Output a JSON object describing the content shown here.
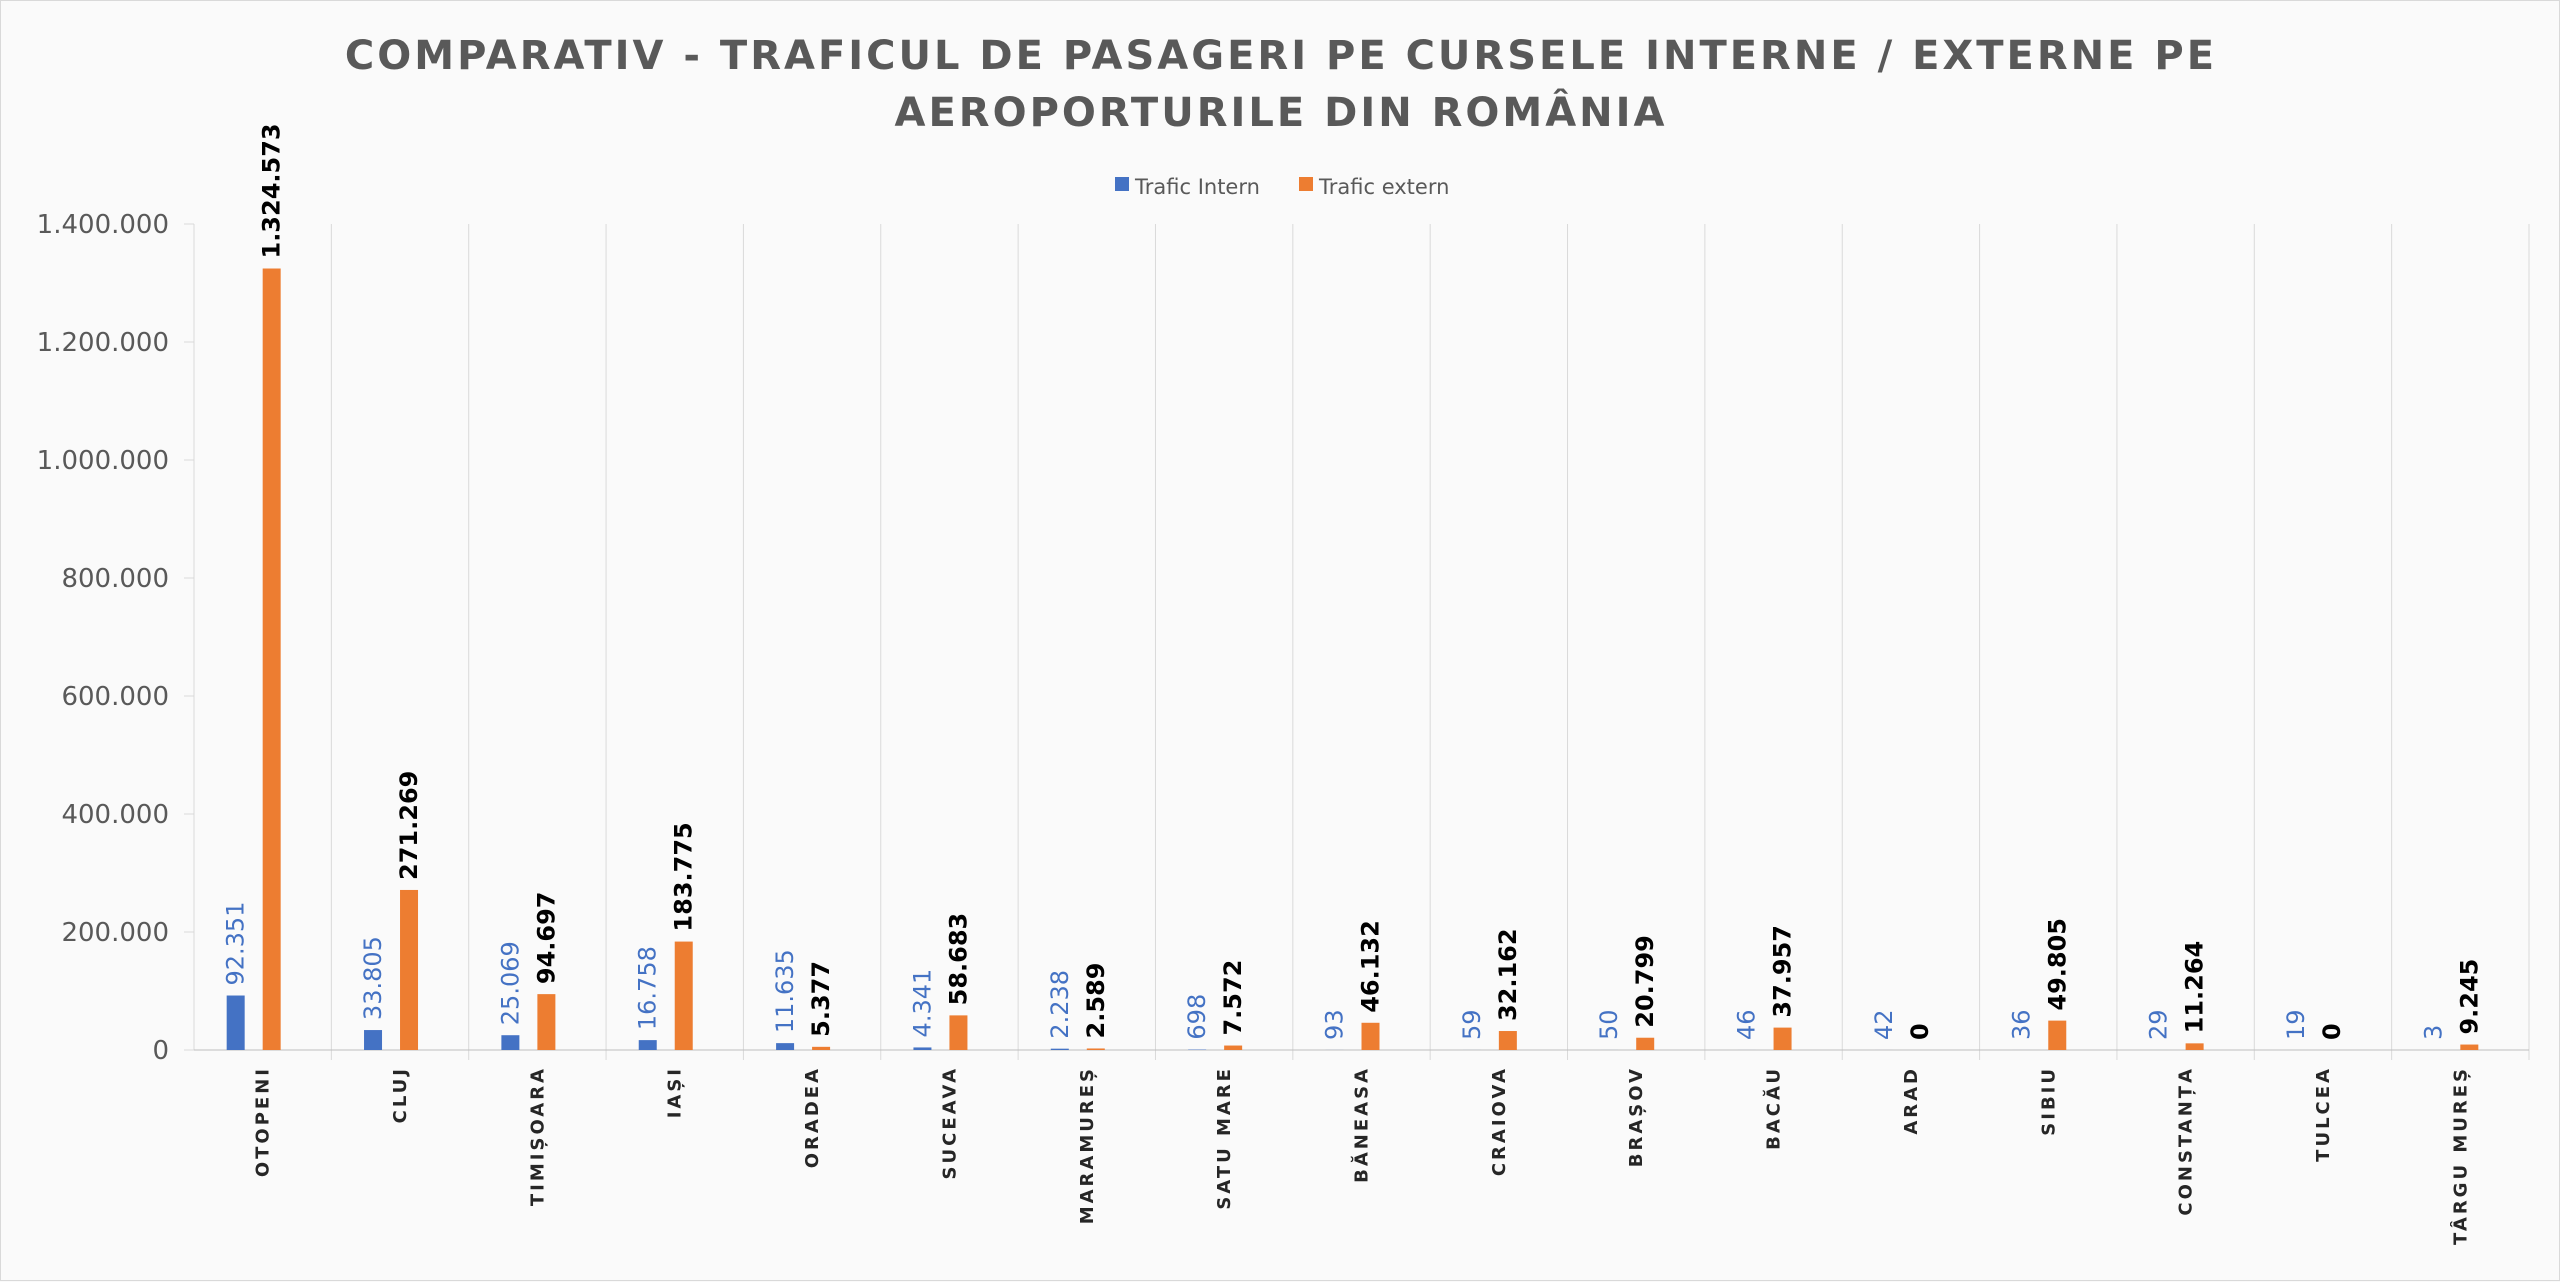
{
  "chart_data": {
    "type": "bar",
    "title_lines": [
      "COMPARATIV - TRAFICUL DE PASAGERI PE CURSELE INTERNE / EXTERNE PE",
      "AEROPORTURILE DIN ROMÂNIA"
    ],
    "xlabel": "",
    "ylabel": "",
    "ylim": [
      0,
      1400000
    ],
    "yticks": [
      0,
      200000,
      400000,
      600000,
      800000,
      1000000,
      1200000,
      1400000
    ],
    "ytick_labels": [
      "0",
      "200.000",
      "400.000",
      "600.000",
      "800.000",
      "1.000.000",
      "1.200.000",
      "1.400.000"
    ],
    "grid": "vertical category separators",
    "legend_position": "top-center",
    "categories": [
      "OTOPENI",
      "CLUJ",
      "TIMIȘOARA",
      "IAȘI",
      "ORADEA",
      "SUCEAVA",
      "MARAMUREȘ",
      "SATU MARE",
      "BĂNEASA",
      "CRAIOVA",
      "BRAȘOV",
      "BACĂU",
      "ARAD",
      "SIBIU",
      "CONSTANȚA",
      "TULCEA",
      "TÂRGU MUREȘ"
    ],
    "series": [
      {
        "name": "Trafic Intern",
        "color": "#4472c4",
        "values": [
          92351,
          33805,
          25069,
          16758,
          11635,
          4341,
          2238,
          698,
          93,
          59,
          50,
          46,
          42,
          36,
          29,
          19,
          3
        ],
        "labels": [
          "92.351",
          "33.805",
          "25.069",
          "16.758",
          "11.635",
          "4.341",
          "2.238",
          "698",
          "93",
          "59",
          "50",
          "46",
          "42",
          "36",
          "29",
          "19",
          "3"
        ]
      },
      {
        "name": "Trafic extern",
        "color": "#ed7d31",
        "values": [
          1324573,
          271269,
          94697,
          183775,
          5377,
          58683,
          2589,
          7572,
          46132,
          32162,
          20799,
          37957,
          0,
          49805,
          11264,
          0,
          9245
        ],
        "labels": [
          "1.324.573",
          "271.269",
          "94.697",
          "183.775",
          "5.377",
          "58.683",
          "2.589",
          "7.572",
          "46.132",
          "32.162",
          "20.799",
          "37.957",
          "0",
          "49.805",
          "11.264",
          "0",
          "9.245"
        ]
      }
    ]
  }
}
